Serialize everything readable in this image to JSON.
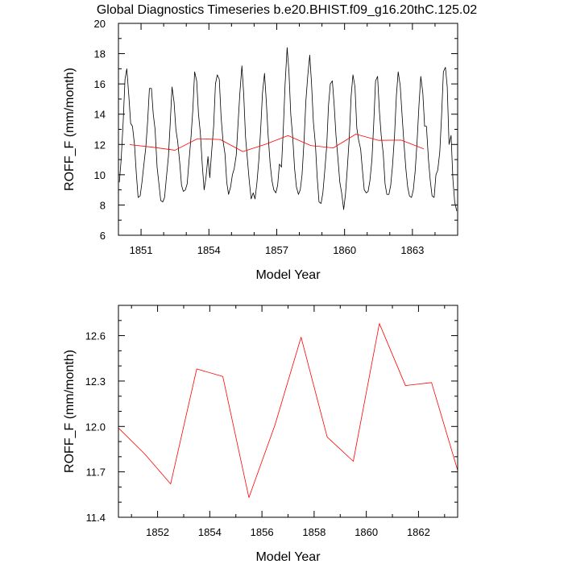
{
  "title": "Global Diagnostics Timeseries b.e20.BHIST.f09_g16.20thC.125.02",
  "colors": {
    "monthly_series": "#000000",
    "annual_series": "#ff0000",
    "frame": "#000000"
  },
  "chart_data": [
    {
      "type": "line",
      "xlabel": "Model Year",
      "ylabel": "ROFF_F (mm/month)",
      "xlim": [
        1850.0,
        1865.0
      ],
      "ylim": [
        6,
        20
      ],
      "xticks": [
        1851,
        1854,
        1857,
        1860,
        1863
      ],
      "yticks": [
        6,
        8,
        10,
        12,
        14,
        16,
        18,
        20
      ],
      "grid": false,
      "legend": "none",
      "series": [
        {
          "x": [
            1850.04,
            1850.12,
            1850.21,
            1850.29,
            1850.37,
            1850.46,
            1850.54,
            1850.62,
            1850.71,
            1850.79,
            1850.87,
            1850.96,
            1851.04,
            1851.12,
            1851.21,
            1851.29,
            1851.37,
            1851.46,
            1851.54,
            1851.62,
            1851.71,
            1851.79,
            1851.87,
            1851.96,
            1852.04,
            1852.12,
            1852.21,
            1852.29,
            1852.37,
            1852.46,
            1852.54,
            1852.62,
            1852.71,
            1852.79,
            1852.87,
            1852.96,
            1853.04,
            1853.12,
            1853.21,
            1853.29,
            1853.37,
            1853.46,
            1853.54,
            1853.62,
            1853.71,
            1853.79,
            1853.87,
            1853.96,
            1854.04,
            1854.12,
            1854.21,
            1854.29,
            1854.37,
            1854.46,
            1854.54,
            1854.62,
            1854.71,
            1854.79,
            1854.87,
            1854.96,
            1855.04,
            1855.12,
            1855.21,
            1855.29,
            1855.37,
            1855.46,
            1855.54,
            1855.62,
            1855.71,
            1855.79,
            1855.87,
            1855.96,
            1856.04,
            1856.12,
            1856.21,
            1856.29,
            1856.37,
            1856.46,
            1856.54,
            1856.62,
            1856.71,
            1856.79,
            1856.87,
            1856.96,
            1857.04,
            1857.12,
            1857.21,
            1857.29,
            1857.37,
            1857.46,
            1857.54,
            1857.62,
            1857.71,
            1857.79,
            1857.87,
            1857.96,
            1858.04,
            1858.12,
            1858.21,
            1858.29,
            1858.37,
            1858.46,
            1858.54,
            1858.62,
            1858.71,
            1858.79,
            1858.87,
            1858.96,
            1859.04,
            1859.12,
            1859.21,
            1859.29,
            1859.37,
            1859.46,
            1859.54,
            1859.62,
            1859.71,
            1859.79,
            1859.87,
            1859.96,
            1860.04,
            1860.12,
            1860.21,
            1860.29,
            1860.37,
            1860.46,
            1860.54,
            1860.62,
            1860.71,
            1860.79,
            1860.87,
            1860.96,
            1861.04,
            1861.12,
            1861.21,
            1861.29,
            1861.37,
            1861.46,
            1861.54,
            1861.62,
            1861.71,
            1861.79,
            1861.87,
            1861.96,
            1862.04,
            1862.12,
            1862.21,
            1862.29,
            1862.37,
            1862.46,
            1862.54,
            1862.62,
            1862.71,
            1862.79,
            1862.87,
            1862.96,
            1863.04,
            1863.12,
            1863.21,
            1863.29,
            1863.37,
            1863.46,
            1863.54,
            1863.62,
            1863.71,
            1863.79,
            1863.87,
            1863.96,
            1864.04,
            1864.12,
            1864.21,
            1864.29,
            1864.37,
            1864.46,
            1864.54,
            1864.62,
            1864.71,
            1864.79,
            1864.87,
            1864.96
          ],
          "y": [
            9.5,
            11.0,
            13.5,
            16.3,
            17.0,
            15.2,
            13.4,
            13.2,
            12.0,
            10.1,
            8.5,
            8.6,
            9.5,
            10.6,
            11.8,
            13.5,
            15.7,
            15.7,
            14.0,
            13.0,
            10.5,
            9.4,
            8.3,
            8.2,
            8.5,
            9.8,
            11.2,
            13.4,
            15.8,
            14.8,
            13.0,
            12.2,
            10.8,
            9.3,
            8.9,
            9.0,
            9.4,
            10.9,
            12.5,
            14.3,
            16.8,
            16.2,
            14.0,
            12.8,
            10.6,
            9.0,
            9.8,
            11.2,
            9.8,
            11.5,
            13.2,
            16.0,
            16.6,
            16.3,
            13.8,
            12.3,
            11.4,
            9.5,
            8.7,
            9.2,
            10.0,
            10.4,
            11.3,
            13.4,
            15.4,
            17.2,
            15.3,
            12.5,
            10.9,
            9.5,
            8.4,
            8.8,
            8.4,
            9.4,
            11.0,
            13.0,
            15.4,
            16.7,
            14.8,
            12.6,
            10.7,
            9.6,
            9.0,
            8.8,
            9.3,
            10.7,
            10.5,
            13.0,
            16.0,
            18.4,
            16.8,
            14.0,
            12.4,
            10.4,
            9.2,
            8.7,
            9.0,
            10.0,
            12.3,
            14.9,
            16.5,
            17.9,
            16.0,
            13.5,
            12.0,
            9.8,
            8.2,
            8.1,
            8.8,
            10.2,
            11.9,
            14.6,
            16.0,
            16.2,
            14.6,
            12.6,
            11.0,
            9.5,
            8.8,
            7.7,
            8.7,
            10.4,
            12.5,
            15.2,
            16.6,
            15.8,
            13.1,
            12.3,
            11.7,
            10.3,
            9.0,
            8.8,
            8.9,
            9.6,
            11.0,
            13.4,
            16.2,
            16.5,
            14.2,
            12.6,
            11.4,
            9.4,
            8.7,
            8.7,
            9.3,
            10.6,
            12.6,
            15.2,
            16.8,
            15.9,
            14.0,
            12.2,
            10.4,
            9.2,
            8.6,
            8.5,
            9.0,
            10.2,
            12.3,
            14.6,
            16.5,
            15.4,
            13.2,
            13.2,
            11.0,
            9.6,
            8.6,
            8.5,
            10.0,
            10.3,
            11.5,
            13.9,
            16.8,
            17.1,
            15.8,
            12.0,
            12.6,
            9.7,
            8.2,
            7.6
          ]
        },
        {
          "x": [
            1850.5,
            1851.5,
            1852.5,
            1853.5,
            1854.5,
            1855.5,
            1856.5,
            1857.5,
            1858.5,
            1859.5,
            1860.5,
            1861.5,
            1862.5,
            1863.5
          ],
          "y": [
            11.99,
            11.82,
            11.62,
            12.38,
            12.33,
            11.53,
            12.01,
            12.59,
            11.93,
            11.77,
            12.68,
            12.27,
            12.29,
            11.71
          ]
        }
      ]
    },
    {
      "type": "line",
      "xlabel": "Model Year",
      "ylabel": "ROFF_F (mm/month)",
      "xlim": [
        1850.5,
        1863.5
      ],
      "ylim": [
        11.4,
        12.8
      ],
      "xticks": [
        1852,
        1854,
        1856,
        1858,
        1860,
        1862
      ],
      "yticks": [
        11.4,
        11.7,
        12.0,
        12.3,
        12.6
      ],
      "grid": false,
      "legend": "none",
      "series": [
        {
          "x": [
            1850.5,
            1851.5,
            1852.5,
            1853.5,
            1854.5,
            1855.5,
            1856.5,
            1857.5,
            1858.5,
            1859.5,
            1860.5,
            1861.5,
            1862.5,
            1863.5
          ],
          "y": [
            11.99,
            11.82,
            11.62,
            12.38,
            12.33,
            11.53,
            12.01,
            12.59,
            11.93,
            11.77,
            12.68,
            12.27,
            12.29,
            11.71
          ]
        }
      ]
    }
  ]
}
